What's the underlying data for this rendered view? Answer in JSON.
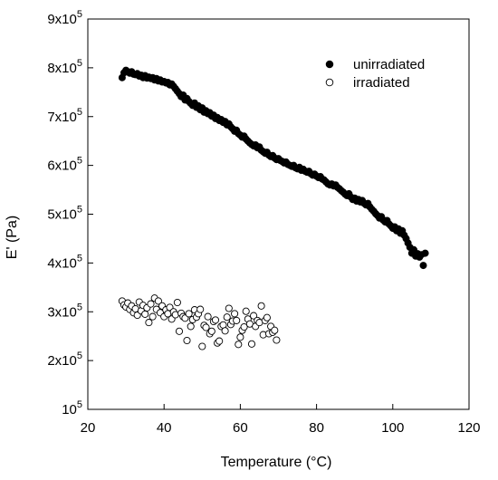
{
  "chart_data": {
    "type": "scatter",
    "title": "",
    "xlabel": "Temperature (°C)",
    "ylabel": "E' (Pa)",
    "xlim": [
      20,
      120
    ],
    "ylim": [
      100000,
      900000
    ],
    "grid": false,
    "legend_position": "top-right",
    "x_ticks": [
      20,
      40,
      60,
      80,
      100,
      120
    ],
    "x_tick_labels": [
      "20",
      "40",
      "60",
      "80",
      "100",
      "120"
    ],
    "y_ticks": [
      {
        "value": 100000,
        "mantissa": "10",
        "sup": "5"
      },
      {
        "value": 200000,
        "mantissa": "2x10",
        "sup": "5"
      },
      {
        "value": 300000,
        "mantissa": "3x10",
        "sup": "5"
      },
      {
        "value": 400000,
        "mantissa": "4x10",
        "sup": "5"
      },
      {
        "value": 500000,
        "mantissa": "5x10",
        "sup": "5"
      },
      {
        "value": 600000,
        "mantissa": "6x10",
        "sup": "5"
      },
      {
        "value": 700000,
        "mantissa": "7x10",
        "sup": "5"
      },
      {
        "value": 800000,
        "mantissa": "8x10",
        "sup": "5"
      },
      {
        "value": 900000,
        "mantissa": "9x10",
        "sup": "5"
      }
    ],
    "series": [
      {
        "name": "unirradiated",
        "marker": "filled-circle",
        "color": "#000000",
        "points": [
          [
            29.0,
            780000
          ],
          [
            29.5,
            790000
          ],
          [
            30.0,
            795000
          ],
          [
            30.5,
            792000
          ],
          [
            31.0,
            789000
          ],
          [
            31.5,
            792000
          ],
          [
            32.0,
            787000
          ],
          [
            32.5,
            786000
          ],
          [
            33.0,
            788000
          ],
          [
            33.5,
            783000
          ],
          [
            34.0,
            785000
          ],
          [
            34.5,
            780000
          ],
          [
            35.0,
            784000
          ],
          [
            35.5,
            779000
          ],
          [
            36.0,
            781000
          ],
          [
            36.5,
            778000
          ],
          [
            37.0,
            780000
          ],
          [
            37.5,
            775000
          ],
          [
            38.0,
            778000
          ],
          [
            38.5,
            773000
          ],
          [
            39.0,
            775000
          ],
          [
            39.5,
            771000
          ],
          [
            40.0,
            772000
          ],
          [
            40.5,
            769000
          ],
          [
            41.0,
            770000
          ],
          [
            41.5,
            765000
          ],
          [
            42.0,
            767000
          ],
          [
            42.5,
            762000
          ],
          [
            43.0,
            757000
          ],
          [
            43.5,
            752000
          ],
          [
            44.0,
            747000
          ],
          [
            44.5,
            741000
          ],
          [
            45.0,
            744000
          ],
          [
            45.5,
            734000
          ],
          [
            46.0,
            737000
          ],
          [
            46.5,
            731000
          ],
          [
            47.0,
            727000
          ],
          [
            47.5,
            723000
          ],
          [
            48.0,
            728000
          ],
          [
            48.5,
            719000
          ],
          [
            49.0,
            722000
          ],
          [
            49.5,
            714000
          ],
          [
            50.0,
            718000
          ],
          [
            50.5,
            709000
          ],
          [
            51.0,
            712000
          ],
          [
            51.5,
            706000
          ],
          [
            52.0,
            708000
          ],
          [
            52.5,
            701000
          ],
          [
            53.0,
            703000
          ],
          [
            53.5,
            696000
          ],
          [
            54.0,
            698000
          ],
          [
            54.5,
            692000
          ],
          [
            55.0,
            694000
          ],
          [
            55.5,
            688000
          ],
          [
            56.0,
            690000
          ],
          [
            56.5,
            683000
          ],
          [
            57.0,
            685000
          ],
          [
            57.5,
            679000
          ],
          [
            58.0,
            675000
          ],
          [
            58.5,
            670000
          ],
          [
            59.0,
            672000
          ],
          [
            59.5,
            665000
          ],
          [
            60.0,
            662000
          ],
          [
            60.5,
            658000
          ],
          [
            61.0,
            660000
          ],
          [
            61.5,
            654000
          ],
          [
            62.0,
            650000
          ],
          [
            62.5,
            646000
          ],
          [
            63.0,
            643000
          ],
          [
            63.5,
            640000
          ],
          [
            64.0,
            642000
          ],
          [
            64.5,
            636000
          ],
          [
            65.0,
            638000
          ],
          [
            65.5,
            631000
          ],
          [
            66.0,
            628000
          ],
          [
            66.5,
            625000
          ],
          [
            67.0,
            627000
          ],
          [
            67.5,
            621000
          ],
          [
            68.0,
            618000
          ],
          [
            68.5,
            620000
          ],
          [
            69.0,
            615000
          ],
          [
            69.5,
            612000
          ],
          [
            70.0,
            614000
          ],
          [
            70.5,
            610000
          ],
          [
            71.0,
            608000
          ],
          [
            71.5,
            605000
          ],
          [
            72.0,
            607000
          ],
          [
            72.5,
            602000
          ],
          [
            73.0,
            600000
          ],
          [
            73.5,
            598000
          ],
          [
            74.0,
            600000
          ],
          [
            74.5,
            595000
          ],
          [
            75.0,
            593000
          ],
          [
            75.5,
            596000
          ],
          [
            76.0,
            590000
          ],
          [
            76.5,
            592000
          ],
          [
            77.0,
            588000
          ],
          [
            77.5,
            586000
          ],
          [
            78.0,
            588000
          ],
          [
            78.5,
            583000
          ],
          [
            79.0,
            580000
          ],
          [
            79.5,
            582000
          ],
          [
            80.0,
            578000
          ],
          [
            80.5,
            575000
          ],
          [
            81.0,
            577000
          ],
          [
            81.5,
            572000
          ],
          [
            82.0,
            570000
          ],
          [
            82.5,
            566000
          ],
          [
            83.0,
            562000
          ],
          [
            83.5,
            560000
          ],
          [
            84.0,
            562000
          ],
          [
            84.5,
            558000
          ],
          [
            85.0,
            560000
          ],
          [
            85.5,
            555000
          ],
          [
            86.0,
            552000
          ],
          [
            86.5,
            548000
          ],
          [
            87.0,
            545000
          ],
          [
            87.5,
            541000
          ],
          [
            88.0,
            538000
          ],
          [
            88.5,
            542000
          ],
          [
            89.0,
            535000
          ],
          [
            89.5,
            530000
          ],
          [
            90.0,
            533000
          ],
          [
            90.5,
            527000
          ],
          [
            91.0,
            530000
          ],
          [
            91.5,
            525000
          ],
          [
            92.0,
            528000
          ],
          [
            92.5,
            522000
          ],
          [
            93.0,
            519000
          ],
          [
            93.5,
            522000
          ],
          [
            94.0,
            515000
          ],
          [
            94.5,
            510000
          ],
          [
            95.0,
            506000
          ],
          [
            95.5,
            501000
          ],
          [
            96.0,
            497000
          ],
          [
            96.5,
            492000
          ],
          [
            97.0,
            495000
          ],
          [
            97.5,
            488000
          ],
          [
            98.0,
            484000
          ],
          [
            98.5,
            487000
          ],
          [
            99.0,
            480000
          ],
          [
            99.5,
            476000
          ],
          [
            100.0,
            471000
          ],
          [
            100.5,
            474000
          ],
          [
            101.0,
            466000
          ],
          [
            101.5,
            470000
          ],
          [
            102.0,
            461000
          ],
          [
            102.5,
            466000
          ],
          [
            103.0,
            457000
          ],
          [
            103.5,
            450000
          ],
          [
            104.0,
            441000
          ],
          [
            104.5,
            432000
          ],
          [
            105.0,
            420000
          ],
          [
            105.5,
            427000
          ],
          [
            106.0,
            414000
          ],
          [
            106.5,
            419000
          ],
          [
            107.0,
            412000
          ],
          [
            107.5,
            417000
          ],
          [
            108.0,
            395000
          ],
          [
            108.5,
            420000
          ]
        ]
      },
      {
        "name": "irradiated",
        "marker": "open-circle",
        "color": "#000000",
        "points": [
          [
            29.0,
            322000
          ],
          [
            29.5,
            314000
          ],
          [
            30.0,
            310000
          ],
          [
            30.5,
            318000
          ],
          [
            31.0,
            305000
          ],
          [
            31.5,
            312000
          ],
          [
            32.0,
            298000
          ],
          [
            32.5,
            306000
          ],
          [
            33.0,
            293000
          ],
          [
            33.5,
            320000
          ],
          [
            34.0,
            302000
          ],
          [
            34.5,
            313000
          ],
          [
            35.0,
            295000
          ],
          [
            35.5,
            308000
          ],
          [
            36.0,
            278000
          ],
          [
            36.5,
            316000
          ],
          [
            37.0,
            290000
          ],
          [
            37.5,
            328000
          ],
          [
            38.0,
            305000
          ],
          [
            38.5,
            322000
          ],
          [
            39.0,
            298000
          ],
          [
            39.5,
            312000
          ],
          [
            40.0,
            290000
          ],
          [
            40.5,
            304000
          ],
          [
            41.0,
            296000
          ],
          [
            41.5,
            309000
          ],
          [
            42.0,
            285000
          ],
          [
            42.5,
            300000
          ],
          [
            43.0,
            294000
          ],
          [
            43.5,
            319000
          ],
          [
            44.0,
            260000
          ],
          [
            44.5,
            297000
          ],
          [
            45.0,
            290000
          ],
          [
            45.5,
            287000
          ],
          [
            46.0,
            241000
          ],
          [
            46.5,
            296000
          ],
          [
            47.0,
            270000
          ],
          [
            47.5,
            284000
          ],
          [
            48.0,
            304000
          ],
          [
            48.5,
            289000
          ],
          [
            49.0,
            296000
          ],
          [
            49.5,
            305000
          ],
          [
            50.0,
            229000
          ],
          [
            50.5,
            272000
          ],
          [
            51.0,
            268000
          ],
          [
            51.5,
            290000
          ],
          [
            52.0,
            255000
          ],
          [
            52.5,
            260000
          ],
          [
            53.0,
            280000
          ],
          [
            53.5,
            283000
          ],
          [
            54.0,
            236000
          ],
          [
            54.5,
            240000
          ],
          [
            55.0,
            270000
          ],
          [
            55.5,
            273000
          ],
          [
            56.0,
            261000
          ],
          [
            56.5,
            289000
          ],
          [
            57.0,
            307000
          ],
          [
            57.5,
            274000
          ],
          [
            58.0,
            281000
          ],
          [
            58.5,
            296000
          ],
          [
            59.0,
            282000
          ],
          [
            59.5,
            233000
          ],
          [
            60.0,
            248000
          ],
          [
            60.5,
            262000
          ],
          [
            61.0,
            269000
          ],
          [
            61.5,
            301000
          ],
          [
            62.0,
            285000
          ],
          [
            62.5,
            275000
          ],
          [
            63.0,
            234000
          ],
          [
            63.5,
            292000
          ],
          [
            64.0,
            270000
          ],
          [
            64.5,
            282000
          ],
          [
            65.0,
            278000
          ],
          [
            65.5,
            312000
          ],
          [
            66.0,
            253000
          ],
          [
            66.5,
            282000
          ],
          [
            67.0,
            288000
          ],
          [
            67.5,
            255000
          ],
          [
            68.0,
            270000
          ],
          [
            68.5,
            258000
          ],
          [
            69.0,
            262000
          ],
          [
            69.5,
            242000
          ]
        ]
      }
    ]
  }
}
